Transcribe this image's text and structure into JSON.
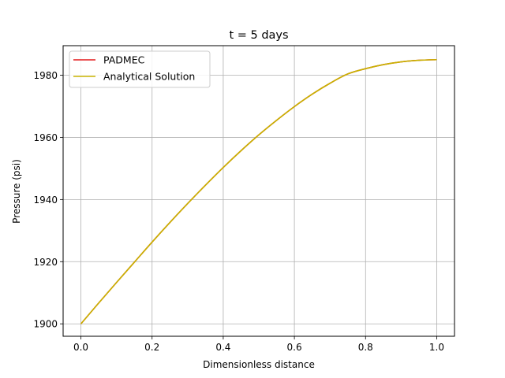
{
  "chart_data": {
    "type": "line",
    "title": "t = 5 days",
    "xlabel": "Dimensionless distance",
    "ylabel": "Pressure (psi)",
    "xlim": [
      -0.05,
      1.05
    ],
    "ylim": [
      1896.0,
      1989.5
    ],
    "xticks": [
      0.0,
      0.2,
      0.4,
      0.6,
      0.8,
      1.0
    ],
    "xtick_labels": [
      "0.0",
      "0.2",
      "0.4",
      "0.6",
      "0.8",
      "1.0"
    ],
    "yticks": [
      1900,
      1920,
      1940,
      1960,
      1980
    ],
    "ytick_labels": [
      "1900",
      "1920",
      "1940",
      "1960",
      "1980"
    ],
    "grid": true,
    "legend_position": "top-left",
    "x": [
      0.0,
      0.05,
      0.1,
      0.15,
      0.2,
      0.25,
      0.3,
      0.35,
      0.4,
      0.45,
      0.5,
      0.55,
      0.6,
      0.65,
      0.7,
      0.75,
      0.8,
      0.85,
      0.9,
      0.95,
      1.0
    ],
    "series": [
      {
        "name": "PADMEC",
        "color": "#e31a1c",
        "values": [
          1900.0,
          1906.7,
          1913.3,
          1919.8,
          1926.3,
          1932.6,
          1938.7,
          1944.6,
          1950.3,
          1955.7,
          1960.8,
          1965.5,
          1969.9,
          1973.9,
          1977.4,
          1980.4,
          1982.1,
          1983.4,
          1984.3,
          1984.8,
          1985.0
        ]
      },
      {
        "name": "Analytical Solution",
        "color": "#c8b400",
        "values": [
          1900.0,
          1906.7,
          1913.3,
          1919.8,
          1926.3,
          1932.6,
          1938.7,
          1944.6,
          1950.3,
          1955.7,
          1960.8,
          1965.5,
          1969.9,
          1973.9,
          1977.4,
          1980.4,
          1982.1,
          1983.4,
          1984.3,
          1984.8,
          1985.0
        ]
      }
    ]
  }
}
